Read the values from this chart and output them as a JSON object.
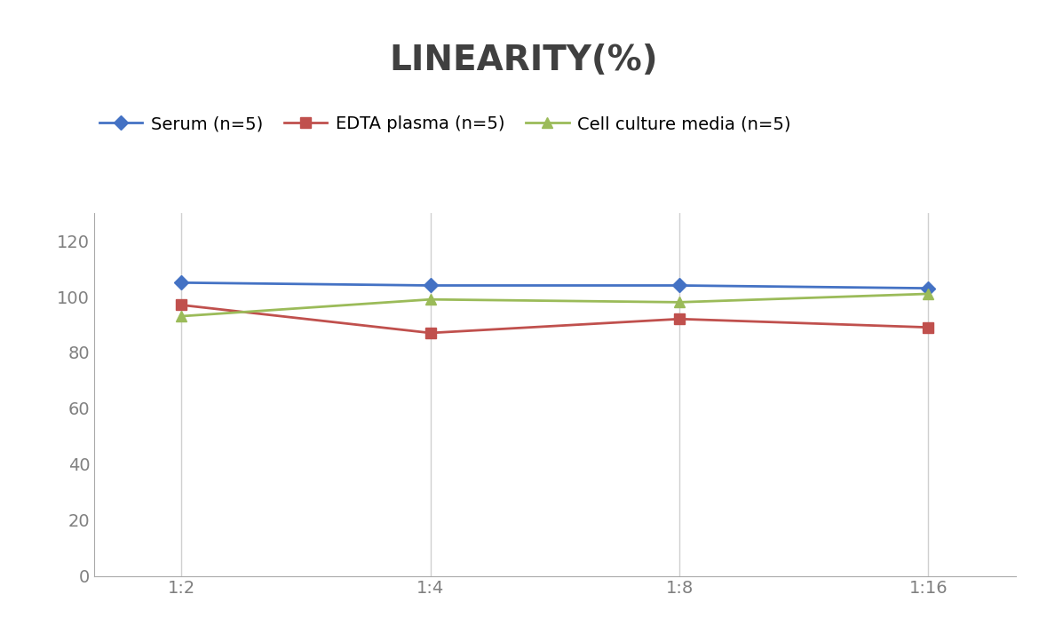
{
  "title": "LINEARITY(%)",
  "title_fontsize": 28,
  "title_fontweight": "bold",
  "title_color": "#404040",
  "x_labels": [
    "1:2",
    "1:4",
    "1:8",
    "1:16"
  ],
  "x_positions": [
    0,
    1,
    2,
    3
  ],
  "series": [
    {
      "name": "Serum (n=5)",
      "values": [
        105,
        104,
        104,
        103
      ],
      "color": "#4472C4",
      "marker": "D",
      "markersize": 8,
      "linewidth": 2
    },
    {
      "name": "EDTA plasma (n=5)",
      "values": [
        97,
        87,
        92,
        89
      ],
      "color": "#C0504D",
      "marker": "s",
      "markersize": 8,
      "linewidth": 2
    },
    {
      "name": "Cell culture media (n=5)",
      "values": [
        93,
        99,
        98,
        101
      ],
      "color": "#9BBB59",
      "marker": "^",
      "markersize": 9,
      "linewidth": 2
    }
  ],
  "ylim": [
    0,
    130
  ],
  "yticks": [
    0,
    20,
    40,
    60,
    80,
    100,
    120
  ],
  "xlim": [
    -0.35,
    3.35
  ],
  "grid_color": "#D0D0D0",
  "background_color": "#FFFFFF",
  "legend_fontsize": 14,
  "tick_fontsize": 14,
  "tick_color": "#808080"
}
